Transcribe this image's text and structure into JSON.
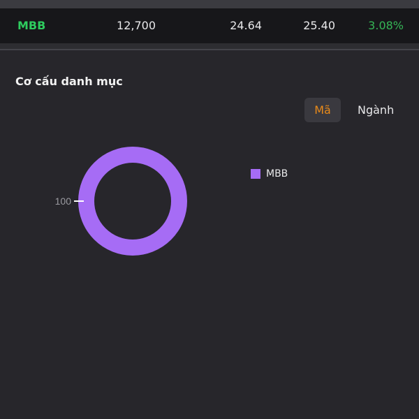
{
  "holding_row": {
    "symbol": "MBB",
    "col1": "12,700",
    "col2": "24.64",
    "col3": "25.40",
    "col4": "3.08%"
  },
  "section_title": "Cơ cấu danh mục",
  "toggle": {
    "options": [
      "Mã",
      "Ngành"
    ],
    "selected": "Mã"
  },
  "colors": {
    "accent": "#e88a1a",
    "positive": "#35b556",
    "series": "#a66cf5"
  },
  "chart_data": {
    "type": "pie",
    "donut": true,
    "categories": [
      "MBB"
    ],
    "values": [
      100
    ],
    "data_labels": [
      "100"
    ],
    "legend": "right",
    "colors": [
      "#a66cf5"
    ]
  }
}
